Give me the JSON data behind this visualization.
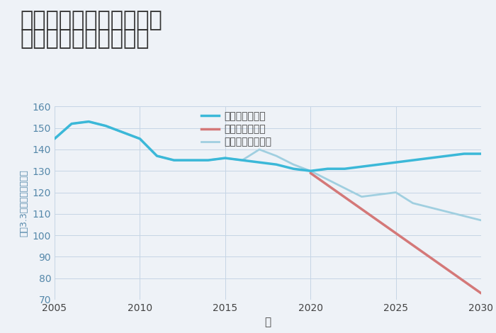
{
  "title_line1": "大阪府堺市堺区五条通の",
  "title_line2": "中古戸建ての価格推移",
  "xlabel": "年",
  "ylabel": "坪（3.3㎡）単価（万円）",
  "background_color": "#eef2f7",
  "plot_background": "#eef2f7",
  "ylim": [
    70,
    160
  ],
  "xlim": [
    2005,
    2030
  ],
  "yticks": [
    70,
    80,
    90,
    100,
    110,
    120,
    130,
    140,
    150,
    160
  ],
  "xticks": [
    2005,
    2010,
    2015,
    2020,
    2025,
    2030
  ],
  "good_scenario": {
    "x": [
      2005,
      2006,
      2007,
      2008,
      2009,
      2010,
      2011,
      2012,
      2013,
      2014,
      2015,
      2016,
      2017,
      2018,
      2019,
      2020,
      2021,
      2022,
      2023,
      2024,
      2025,
      2026,
      2027,
      2028,
      2029,
      2030
    ],
    "y": [
      145,
      152,
      153,
      151,
      148,
      145,
      137,
      135,
      135,
      135,
      136,
      135,
      134,
      133,
      131,
      130,
      131,
      131,
      132,
      133,
      134,
      135,
      136,
      137,
      138,
      138
    ],
    "color": "#3bb8d8",
    "label": "グッドシナリオ",
    "linewidth": 2.5
  },
  "bad_scenario": {
    "x": [
      2020,
      2030
    ],
    "y": [
      129,
      73
    ],
    "color": "#d47878",
    "label": "バッドシナリオ",
    "linewidth": 2.5
  },
  "normal_scenario": {
    "x": [
      2005,
      2006,
      2007,
      2008,
      2009,
      2010,
      2011,
      2012,
      2013,
      2014,
      2015,
      2016,
      2017,
      2018,
      2019,
      2020,
      2021,
      2022,
      2023,
      2024,
      2025,
      2026,
      2027,
      2028,
      2029,
      2030
    ],
    "y": [
      145,
      152,
      153,
      151,
      148,
      145,
      137,
      135,
      135,
      135,
      136,
      135,
      140,
      137,
      133,
      130,
      126,
      122,
      118,
      119,
      120,
      115,
      113,
      111,
      109,
      107
    ],
    "color": "#a0cfe0",
    "label": "ノーマルシナリオ",
    "linewidth": 2.0
  },
  "legend_fontsize": 10,
  "title_fontsize": 22,
  "axis_label_fontsize": 11,
  "tick_fontsize": 10,
  "grid_color": "#c5d5e5",
  "grid_alpha": 1.0
}
